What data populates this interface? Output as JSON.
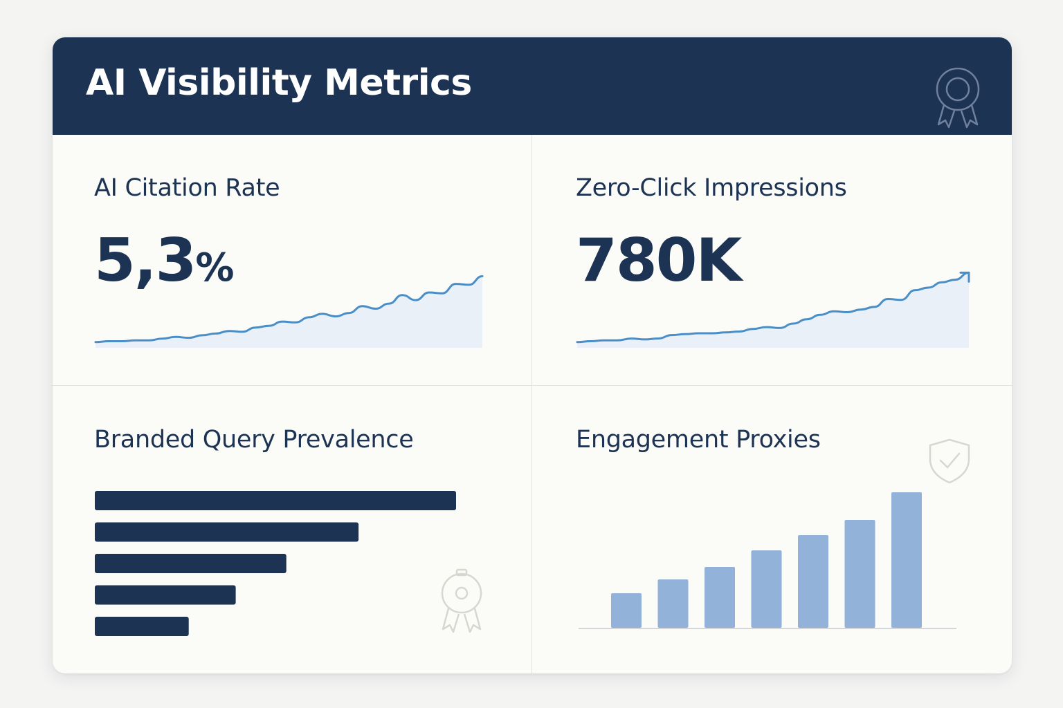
{
  "header": {
    "title": "AI Visibility Metrics",
    "badge_icon": "award-ribbon-icon"
  },
  "colors": {
    "header_bg": "#1d3354",
    "navy": "#1d3354",
    "line_blue": "#4a8ec8",
    "area_fill": "#e9f0f7",
    "bar_blue": "#92b2da",
    "card_bg": "#fbfbf8"
  },
  "panels": {
    "citation_rate": {
      "title": "AI Citation Rate",
      "value_number": "5,3",
      "value_unit": "%"
    },
    "zero_click": {
      "title": "Zero-Click Impressions",
      "value": "780K",
      "trend_icon": "arrow-up-right-icon"
    },
    "branded_query": {
      "title": "Branded Query Prevalence",
      "decor_icon": "award-medal-icon"
    },
    "engagement": {
      "title": "Engagement Proxies",
      "decor_icon": "shield-check-icon"
    }
  },
  "chart_data": [
    {
      "type": "area",
      "name": "citation-rate-trend",
      "x": [
        0,
        1,
        2,
        3,
        4,
        5,
        6,
        7,
        8,
        9,
        10,
        11,
        12,
        13,
        14,
        15,
        16,
        17,
        18,
        19,
        20,
        21,
        22,
        23,
        24,
        25,
        26,
        27,
        28,
        29
      ],
      "y": [
        1,
        2,
        2,
        3,
        3,
        5,
        7,
        6,
        9,
        11,
        14,
        13,
        18,
        20,
        25,
        24,
        30,
        34,
        31,
        35,
        43,
        40,
        46,
        56,
        50,
        59,
        58,
        69,
        68,
        78
      ],
      "ylim": [
        0,
        80
      ]
    },
    {
      "type": "area",
      "name": "zero-click-trend",
      "x": [
        0,
        1,
        2,
        3,
        4,
        5,
        6,
        7,
        8,
        9,
        10,
        11,
        12,
        13,
        14,
        15,
        16,
        17,
        18,
        19,
        20,
        21,
        22,
        23,
        24,
        25,
        26,
        27,
        28,
        29
      ],
      "y": [
        1,
        2,
        3,
        3,
        5,
        4,
        5,
        9,
        10,
        11,
        11,
        12,
        13,
        16,
        18,
        17,
        22,
        27,
        32,
        36,
        35,
        38,
        41,
        50,
        49,
        60,
        63,
        69,
        72,
        80
      ],
      "ylim": [
        0,
        85
      ]
    },
    {
      "type": "bar",
      "orientation": "horizontal",
      "name": "branded-query-bars",
      "categories": [
        "1",
        "2",
        "3",
        "4",
        "5"
      ],
      "values": [
        100,
        73,
        53,
        39,
        26
      ],
      "ylim": [
        0,
        100
      ]
    },
    {
      "type": "bar",
      "orientation": "vertical",
      "name": "engagement-bars",
      "categories": [
        "1",
        "2",
        "3",
        "4",
        "5",
        "6",
        "7"
      ],
      "values": [
        25,
        35,
        44,
        56,
        67,
        78,
        98
      ],
      "ylim": [
        0,
        100
      ]
    }
  ]
}
